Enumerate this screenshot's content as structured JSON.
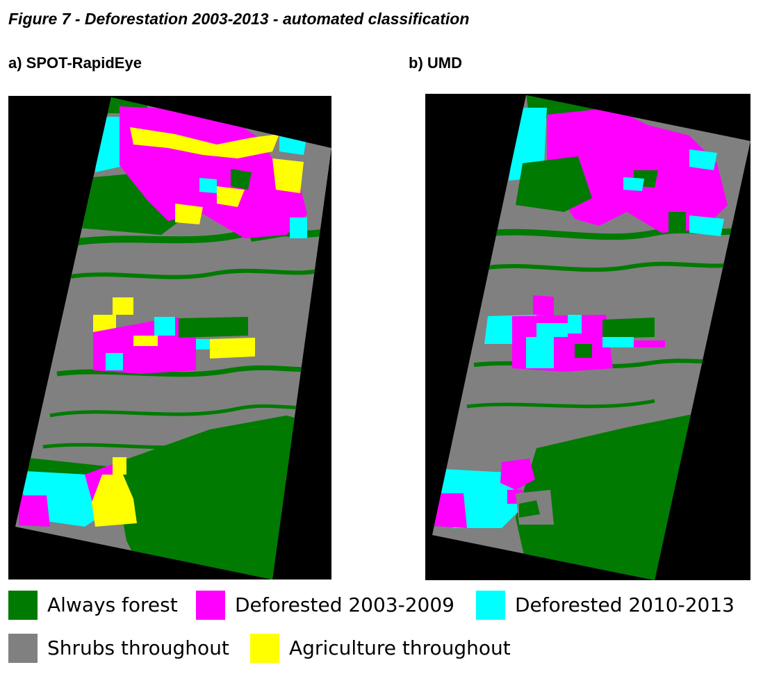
{
  "figure": {
    "title": "Figure 7 - Deforestation 2003-2013 - automated classification"
  },
  "panels": [
    {
      "label": "a) SPOT-RapidEye"
    },
    {
      "label": "b) UMD"
    }
  ],
  "legend": [
    {
      "label": "Always forest",
      "color": "#007a00"
    },
    {
      "label": "Deforested 2003-2009",
      "color": "#ff00ff"
    },
    {
      "label": "Deforested 2010-2013",
      "color": "#00ffff"
    },
    {
      "label": "Shrubs throughout",
      "color": "#808080"
    },
    {
      "label": "Agriculture throughout",
      "color": "#ffff00"
    }
  ],
  "colors": {
    "background": "#000000",
    "forest": "#007a00",
    "deforested_2003_2009": "#ff00ff",
    "deforested_2010_2013": "#00ffff",
    "shrubs": "#808080",
    "agriculture": "#ffff00"
  }
}
